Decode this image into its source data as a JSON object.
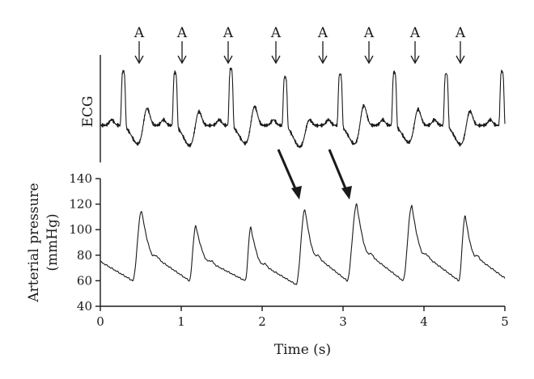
{
  "chart_data": [
    {
      "type": "line",
      "id": "ecg",
      "title": "",
      "ylabel": "ECG",
      "xlabel": "",
      "units": "arbitrary",
      "annotation_label": "A",
      "annotation_times": [
        0.48,
        1.01,
        1.58,
        2.17,
        2.75,
        3.32,
        3.89,
        4.45
      ],
      "beats": [
        {
          "r": 0.27,
          "amp": 1.0,
          "t_amp": 0.45,
          "dip": 0.35
        },
        {
          "r": 0.91,
          "amp": 0.98,
          "t_amp": 0.4,
          "dip": 0.38
        },
        {
          "r": 1.6,
          "amp": 1.05,
          "t_amp": 0.48,
          "dip": 0.34
        },
        {
          "r": 2.27,
          "amp": 0.9,
          "t_amp": 0.25,
          "dip": 0.4
        },
        {
          "r": 2.95,
          "amp": 0.95,
          "t_amp": 0.5,
          "dip": 0.35
        },
        {
          "r": 3.62,
          "amp": 0.98,
          "t_amp": 0.42,
          "dip": 0.32
        },
        {
          "r": 4.26,
          "amp": 0.96,
          "t_amp": 0.4,
          "dip": 0.36
        },
        {
          "r": 4.95,
          "amp": 1.0,
          "t_amp": 0.3,
          "dip": 0.35
        }
      ]
    },
    {
      "type": "line",
      "id": "arterial-pressure",
      "title": "",
      "xlabel": "Time (s)",
      "ylabel": "Arterial pressure",
      "ylabel_unit": "(mmHg)",
      "xlim": [
        0,
        5
      ],
      "ylim": [
        40,
        140
      ],
      "xticks": [
        0,
        1,
        2,
        3,
        4,
        5
      ],
      "yticks": [
        40,
        60,
        80,
        100,
        120,
        140
      ],
      "grid": false,
      "start_value": 75,
      "end_value": 62,
      "beats": [
        {
          "t_min": 0.4,
          "min": 60,
          "t_peak": 0.51,
          "peak": 115
        },
        {
          "t_min": 1.1,
          "min": 60,
          "t_peak": 1.18,
          "peak": 103
        },
        {
          "t_min": 1.79,
          "min": 60,
          "t_peak": 1.86,
          "peak": 102
        },
        {
          "t_min": 2.42,
          "min": 57,
          "t_peak": 2.53,
          "peak": 116
        },
        {
          "t_min": 3.05,
          "min": 60,
          "t_peak": 3.17,
          "peak": 120
        },
        {
          "t_min": 3.74,
          "min": 60,
          "t_peak": 3.85,
          "peak": 119
        },
        {
          "t_min": 4.43,
          "min": 60,
          "t_peak": 4.51,
          "peak": 111
        }
      ]
    }
  ]
}
